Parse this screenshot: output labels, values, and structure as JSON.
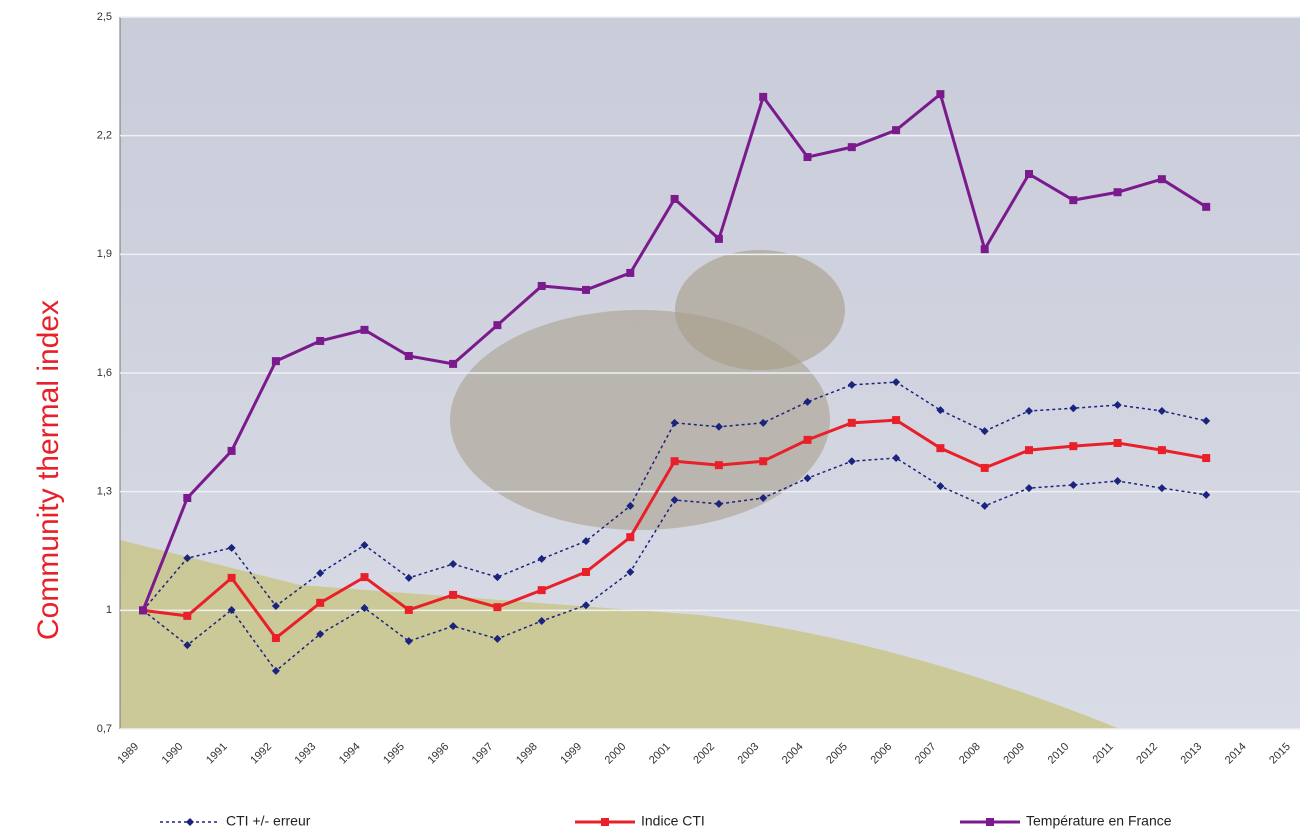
{
  "chart_data": {
    "type": "line",
    "y_label": "Community thermal index",
    "categories": [
      "1989",
      "1990",
      "1991",
      "1992",
      "1993",
      "1994",
      "1995",
      "1996",
      "1997",
      "1998",
      "1999",
      "2000",
      "2001",
      "2002",
      "2003",
      "2004",
      "2005",
      "2006",
      "2007",
      "2008",
      "2009",
      "2010",
      "2011",
      "2012",
      "2013",
      "2014",
      "2015"
    ],
    "ylim": [
      0.7,
      2.5
    ],
    "yticks": [
      {
        "value": 0.7,
        "label": "0,7"
      },
      1,
      {
        "value": 1.3,
        "label": "1,3"
      },
      {
        "value": 1.6,
        "label": "1,6"
      },
      {
        "value": 1.9,
        "label": "1,9"
      },
      {
        "value": 2.2,
        "label": "2,2"
      },
      {
        "value": 2.5,
        "label": "2,5"
      }
    ],
    "grid": true,
    "series": [
      {
        "name": "CTI +/- erreur",
        "color": "#1a237e",
        "style": "dotted",
        "marker": "diamond",
        "values": [
          1.0,
          1.132,
          1.158,
          1.011,
          1.094,
          1.165,
          1.082,
          1.117,
          1.084,
          1.13,
          1.175,
          1.264,
          1.474,
          1.464,
          1.474,
          1.527,
          1.57,
          1.577,
          1.506,
          1.453,
          1.504,
          1.511,
          1.519,
          1.504,
          1.479,
          null,
          null
        ],
        "values_lower": [
          1.0,
          0.912,
          1.001,
          0.847,
          0.94,
          1.006,
          0.922,
          0.96,
          0.928,
          0.973,
          1.013,
          1.097,
          1.279,
          1.269,
          1.284,
          1.334,
          1.377,
          1.385,
          1.314,
          1.264,
          1.309,
          1.317,
          1.327,
          1.309,
          1.292,
          null,
          null
        ]
      },
      {
        "name": "Indice CTI",
        "color": "#e8202a",
        "style": "solid",
        "marker": "square",
        "values": [
          1.0,
          0.986,
          1.082,
          0.93,
          1.019,
          1.084,
          1.001,
          1.039,
          1.008,
          1.051,
          1.097,
          1.185,
          1.377,
          1.367,
          1.377,
          1.431,
          1.474,
          1.481,
          1.41,
          1.36,
          1.405,
          1.415,
          1.423,
          1.405,
          1.385,
          null,
          null
        ]
      },
      {
        "name": "Température en France",
        "color": "#7b1a8c",
        "style": "solid",
        "marker": "square",
        "values": [
          1.0,
          1.284,
          1.403,
          1.63,
          1.681,
          1.709,
          1.643,
          1.623,
          1.721,
          1.82,
          1.81,
          1.853,
          2.04,
          1.939,
          2.298,
          2.146,
          2.171,
          2.214,
          2.305,
          1.913,
          2.103,
          2.037,
          2.057,
          2.09,
          2.02,
          null,
          null
        ]
      }
    ]
  }
}
